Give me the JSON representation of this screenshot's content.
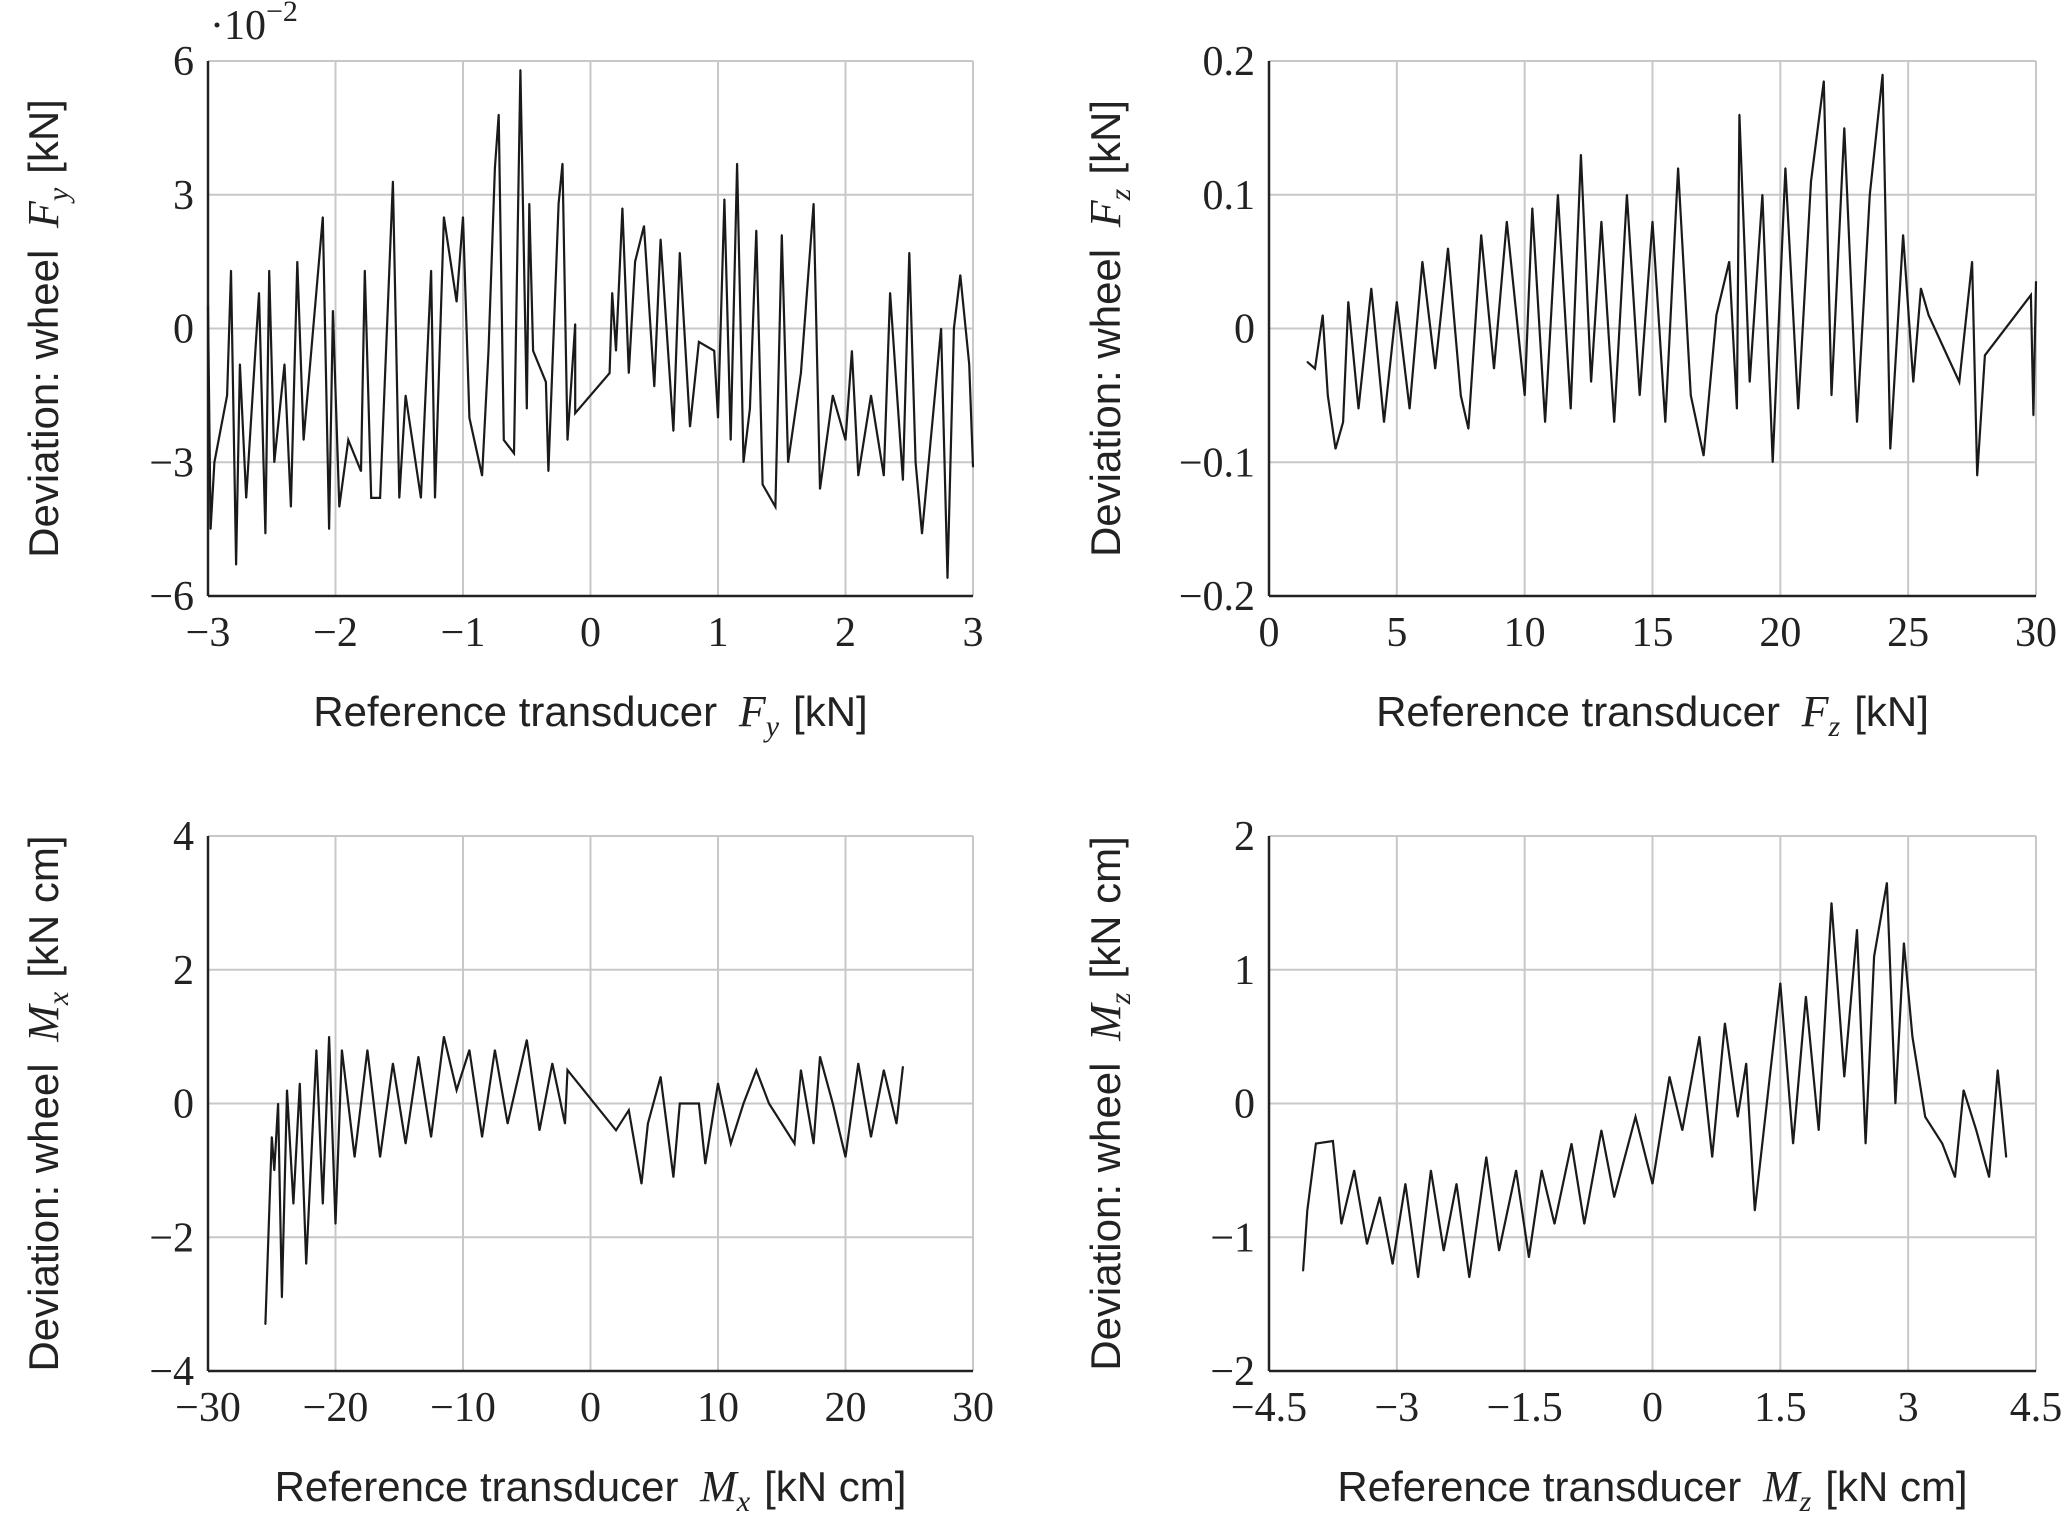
{
  "chart_data": [
    {
      "type": "line",
      "xlabel": {
        "prefix": "Reference transducer",
        "symbol": "F",
        "sub": "y",
        "unit": "[kN]"
      },
      "ylabel": {
        "prefix": "Deviation: wheel",
        "symbol": "F",
        "sub": "y",
        "unit": "[kN]"
      },
      "exponent_label": "·10",
      "exponent_power": "−2",
      "xlim": [
        -3,
        3
      ],
      "ylim": [
        -6,
        6
      ],
      "xticks": [
        -3,
        -2,
        -1,
        0,
        1,
        2,
        3
      ],
      "xtick_labels": [
        "−3",
        "−2",
        "−1",
        "0",
        "1",
        "2",
        "3"
      ],
      "yticks": [
        -6,
        -3,
        0,
        3,
        6
      ],
      "ytick_labels": [
        "−6",
        "−3",
        "0",
        "3",
        "6"
      ],
      "grid": true,
      "line_color": "#1a1a1a",
      "points": [
        [
          -3,
          0.5
        ],
        [
          -2.98,
          -4.5
        ],
        [
          -2.95,
          -3
        ],
        [
          -2.85,
          -1.5
        ],
        [
          -2.82,
          1.3
        ],
        [
          -2.78,
          -5.3
        ],
        [
          -2.75,
          -0.8
        ],
        [
          -2.7,
          -3.8
        ],
        [
          -2.6,
          0.8
        ],
        [
          -2.55,
          -4.6
        ],
        [
          -2.52,
          1.3
        ],
        [
          -2.48,
          -3
        ],
        [
          -2.4,
          -0.8
        ],
        [
          -2.35,
          -4
        ],
        [
          -2.3,
          1.5
        ],
        [
          -2.25,
          -2.5
        ],
        [
          -2.1,
          2.5
        ],
        [
          -2.05,
          -4.5
        ],
        [
          -2.02,
          0.4
        ],
        [
          -1.97,
          -4
        ],
        [
          -1.9,
          -2.5
        ],
        [
          -1.8,
          -3.2
        ],
        [
          -1.77,
          1.3
        ],
        [
          -1.72,
          -3.8
        ],
        [
          -1.65,
          -3.8
        ],
        [
          -1.55,
          3.3
        ],
        [
          -1.5,
          -3.8
        ],
        [
          -1.45,
          -1.5
        ],
        [
          -1.33,
          -3.8
        ],
        [
          -1.25,
          1.3
        ],
        [
          -1.22,
          -3.8
        ],
        [
          -1.15,
          2.5
        ],
        [
          -1.05,
          0.6
        ],
        [
          -1.0,
          2.5
        ],
        [
          -0.95,
          -2
        ],
        [
          -0.85,
          -3.3
        ],
        [
          -0.8,
          -0.5
        ],
        [
          -0.75,
          3.6
        ],
        [
          -0.72,
          4.8
        ],
        [
          -0.68,
          -2.5
        ],
        [
          -0.6,
          -2.8
        ],
        [
          -0.55,
          5.8
        ],
        [
          -0.5,
          -1.8
        ],
        [
          -0.48,
          2.8
        ],
        [
          -0.45,
          -0.5
        ],
        [
          -0.35,
          -1.2
        ],
        [
          -0.33,
          -3.2
        ],
        [
          -0.25,
          2.8
        ],
        [
          -0.22,
          3.7
        ],
        [
          -0.18,
          -2.5
        ],
        [
          -0.12,
          0.1
        ],
        [
          -0.12,
          -1.9
        ],
        [
          0.15,
          -1
        ],
        [
          0.17,
          0.8
        ],
        [
          0.2,
          -0.5
        ],
        [
          0.25,
          2.7
        ],
        [
          0.3,
          -1
        ],
        [
          0.35,
          1.5
        ],
        [
          0.42,
          2.3
        ],
        [
          0.5,
          -1.3
        ],
        [
          0.55,
          2
        ],
        [
          0.65,
          -2.3
        ],
        [
          0.7,
          1.7
        ],
        [
          0.78,
          -2.2
        ],
        [
          0.85,
          -0.3
        ],
        [
          0.97,
          -0.5
        ],
        [
          1.0,
          -2
        ],
        [
          1.05,
          2.9
        ],
        [
          1.1,
          -2.5
        ],
        [
          1.15,
          3.7
        ],
        [
          1.2,
          -3
        ],
        [
          1.25,
          -1.8
        ],
        [
          1.3,
          2.2
        ],
        [
          1.35,
          -3.5
        ],
        [
          1.45,
          -4
        ],
        [
          1.5,
          2.1
        ],
        [
          1.55,
          -3
        ],
        [
          1.65,
          -1
        ],
        [
          1.75,
          2.8
        ],
        [
          1.8,
          -3.6
        ],
        [
          1.9,
          -1.5
        ],
        [
          2.0,
          -2.5
        ],
        [
          2.05,
          -0.5
        ],
        [
          2.1,
          -3.3
        ],
        [
          2.2,
          -1.5
        ],
        [
          2.3,
          -3.3
        ],
        [
          2.35,
          0.8
        ],
        [
          2.45,
          -3.4
        ],
        [
          2.5,
          1.7
        ],
        [
          2.55,
          -3
        ],
        [
          2.6,
          -4.6
        ],
        [
          2.75,
          0
        ],
        [
          2.8,
          -5.6
        ],
        [
          2.85,
          0
        ],
        [
          2.9,
          1.2
        ],
        [
          2.97,
          -0.8
        ],
        [
          3.0,
          -3.1
        ]
      ]
    },
    {
      "type": "line",
      "xlabel": {
        "prefix": "Reference transducer",
        "symbol": "F",
        "sub": "z",
        "unit": "[kN]"
      },
      "ylabel": {
        "prefix": "Deviation: wheel",
        "symbol": "F",
        "sub": "z",
        "unit": "[kN]"
      },
      "xlim": [
        0,
        30
      ],
      "ylim": [
        -0.2,
        0.2
      ],
      "xticks": [
        0,
        5,
        10,
        15,
        20,
        25,
        30
      ],
      "xtick_labels": [
        "0",
        "5",
        "10",
        "15",
        "20",
        "25",
        "30"
      ],
      "yticks": [
        -0.2,
        -0.1,
        0,
        0.1,
        0.2
      ],
      "ytick_labels": [
        "−0.2",
        "−0.1",
        "0",
        "0.1",
        "0.2"
      ],
      "grid": true,
      "line_color": "#1a1a1a",
      "points": [
        [
          1.5,
          -0.025
        ],
        [
          1.8,
          -0.03
        ],
        [
          2.1,
          0.01
        ],
        [
          2.3,
          -0.05
        ],
        [
          2.6,
          -0.09
        ],
        [
          2.9,
          -0.07
        ],
        [
          3.1,
          0.02
        ],
        [
          3.5,
          -0.06
        ],
        [
          4,
          0.03
        ],
        [
          4.5,
          -0.07
        ],
        [
          5,
          0.02
        ],
        [
          5.5,
          -0.06
        ],
        [
          6,
          0.05
        ],
        [
          6.5,
          -0.03
        ],
        [
          7,
          0.06
        ],
        [
          7.5,
          -0.05
        ],
        [
          7.8,
          -0.075
        ],
        [
          8.3,
          0.07
        ],
        [
          8.8,
          -0.03
        ],
        [
          9.3,
          0.08
        ],
        [
          10,
          -0.05
        ],
        [
          10.3,
          0.09
        ],
        [
          10.8,
          -0.07
        ],
        [
          11.3,
          0.1
        ],
        [
          11.8,
          -0.06
        ],
        [
          12.2,
          0.13
        ],
        [
          12.6,
          -0.04
        ],
        [
          13,
          0.08
        ],
        [
          13.5,
          -0.07
        ],
        [
          14,
          0.1
        ],
        [
          14.5,
          -0.05
        ],
        [
          15,
          0.08
        ],
        [
          15.5,
          -0.07
        ],
        [
          16,
          0.12
        ],
        [
          16.5,
          -0.05
        ],
        [
          17,
          -0.095
        ],
        [
          17.5,
          0.01
        ],
        [
          18,
          0.05
        ],
        [
          18.3,
          -0.06
        ],
        [
          18.4,
          0.16
        ],
        [
          18.8,
          -0.04
        ],
        [
          19.3,
          0.1
        ],
        [
          19.7,
          -0.1
        ],
        [
          20.2,
          0.12
        ],
        [
          20.7,
          -0.06
        ],
        [
          21.2,
          0.11
        ],
        [
          21.7,
          0.185
        ],
        [
          22,
          -0.05
        ],
        [
          22.5,
          0.15
        ],
        [
          23,
          -0.07
        ],
        [
          23.5,
          0.1
        ],
        [
          24,
          0.19
        ],
        [
          24.3,
          -0.09
        ],
        [
          24.8,
          0.07
        ],
        [
          25.2,
          -0.04
        ],
        [
          25.5,
          0.03
        ],
        [
          25.8,
          0.01
        ],
        [
          27,
          -0.04
        ],
        [
          27.5,
          0.05
        ],
        [
          27.7,
          -0.11
        ],
        [
          28,
          -0.02
        ],
        [
          29.8,
          0.025
        ],
        [
          29.9,
          -0.065
        ],
        [
          30,
          0.035
        ]
      ]
    },
    {
      "type": "line",
      "xlabel": {
        "prefix": "Reference transducer",
        "symbol": "M",
        "sub": "x",
        "unit": "[kN cm]"
      },
      "ylabel": {
        "prefix": "Deviation: wheel",
        "symbol": "M",
        "sub": "x",
        "unit": "[kN cm]"
      },
      "xlim": [
        -30,
        30
      ],
      "ylim": [
        -4,
        4
      ],
      "xticks": [
        -30,
        -20,
        -10,
        0,
        10,
        20,
        30
      ],
      "xtick_labels": [
        "−30",
        "−20",
        "−10",
        "0",
        "10",
        "20",
        "30"
      ],
      "yticks": [
        -4,
        -2,
        0,
        2,
        4
      ],
      "ytick_labels": [
        "−4",
        "−2",
        "0",
        "2",
        "4"
      ],
      "grid": true,
      "line_color": "#1a1a1a",
      "points": [
        [
          -25.5,
          -3.3
        ],
        [
          -25,
          -0.5
        ],
        [
          -24.8,
          -1
        ],
        [
          -24.5,
          0
        ],
        [
          -24.2,
          -2.9
        ],
        [
          -23.8,
          0.2
        ],
        [
          -23.3,
          -1.5
        ],
        [
          -22.8,
          0.3
        ],
        [
          -22.3,
          -2.4
        ],
        [
          -21.5,
          0.8
        ],
        [
          -21,
          -1.5
        ],
        [
          -20.5,
          1
        ],
        [
          -20,
          -1.8
        ],
        [
          -19.5,
          0.8
        ],
        [
          -18.5,
          -0.8
        ],
        [
          -17.5,
          0.8
        ],
        [
          -16.5,
          -0.8
        ],
        [
          -15.5,
          0.6
        ],
        [
          -14.5,
          -0.6
        ],
        [
          -13.5,
          0.7
        ],
        [
          -12.5,
          -0.5
        ],
        [
          -11.5,
          1
        ],
        [
          -10.5,
          0.2
        ],
        [
          -9.5,
          0.8
        ],
        [
          -8.5,
          -0.5
        ],
        [
          -7.5,
          0.8
        ],
        [
          -6.5,
          -0.3
        ],
        [
          -5,
          0.95
        ],
        [
          -4,
          -0.4
        ],
        [
          -3,
          0.6
        ],
        [
          -2,
          -0.3
        ],
        [
          -1.8,
          0.5
        ],
        [
          2,
          -0.4
        ],
        [
          3,
          -0.1
        ],
        [
          4,
          -1.2
        ],
        [
          4.5,
          -0.3
        ],
        [
          5.5,
          0.4
        ],
        [
          6.5,
          -1.1
        ],
        [
          7,
          0
        ],
        [
          8.5,
          0
        ],
        [
          9,
          -0.9
        ],
        [
          10,
          0.3
        ],
        [
          11,
          -0.6
        ],
        [
          12,
          0
        ],
        [
          13,
          0.5
        ],
        [
          14,
          0
        ],
        [
          16,
          -0.6
        ],
        [
          16.5,
          0.5
        ],
        [
          17.5,
          -0.6
        ],
        [
          18,
          0.7
        ],
        [
          19,
          0
        ],
        [
          20,
          -0.8
        ],
        [
          21,
          0.6
        ],
        [
          22,
          -0.5
        ],
        [
          23,
          0.5
        ],
        [
          24,
          -0.3
        ],
        [
          24.5,
          0.55
        ]
      ]
    },
    {
      "type": "line",
      "xlabel": {
        "prefix": "Reference transducer",
        "symbol": "M",
        "sub": "z",
        "unit": "[kN cm]"
      },
      "ylabel": {
        "prefix": "Deviation: wheel",
        "symbol": "M",
        "sub": "z",
        "unit": "[kN cm]"
      },
      "xlim": [
        -4.5,
        4.5
      ],
      "ylim": [
        -2,
        2
      ],
      "xticks": [
        -4.5,
        -3,
        -1.5,
        0,
        1.5,
        3,
        4.5
      ],
      "xtick_labels": [
        "−4.5",
        "−3",
        "−1.5",
        "0",
        "1.5",
        "3",
        "4.5"
      ],
      "yticks": [
        -2,
        -1,
        0,
        1,
        2
      ],
      "ytick_labels": [
        "−2",
        "−1",
        "0",
        "1",
        "2"
      ],
      "grid": true,
      "line_color": "#1a1a1a",
      "points": [
        [
          -4.1,
          -1.25
        ],
        [
          -4.05,
          -0.8
        ],
        [
          -3.95,
          -0.3
        ],
        [
          -3.75,
          -0.28
        ],
        [
          -3.65,
          -0.9
        ],
        [
          -3.5,
          -0.5
        ],
        [
          -3.35,
          -1.05
        ],
        [
          -3.2,
          -0.7
        ],
        [
          -3.05,
          -1.2
        ],
        [
          -2.9,
          -0.6
        ],
        [
          -2.75,
          -1.3
        ],
        [
          -2.6,
          -0.5
        ],
        [
          -2.45,
          -1.1
        ],
        [
          -2.3,
          -0.6
        ],
        [
          -2.15,
          -1.3
        ],
        [
          -1.95,
          -0.4
        ],
        [
          -1.8,
          -1.1
        ],
        [
          -1.6,
          -0.5
        ],
        [
          -1.45,
          -1.15
        ],
        [
          -1.3,
          -0.5
        ],
        [
          -1.15,
          -0.9
        ],
        [
          -0.95,
          -0.3
        ],
        [
          -0.8,
          -0.9
        ],
        [
          -0.6,
          -0.2
        ],
        [
          -0.45,
          -0.7
        ],
        [
          -0.2,
          -0.1
        ],
        [
          0,
          -0.6
        ],
        [
          0.2,
          0.2
        ],
        [
          0.35,
          -0.2
        ],
        [
          0.55,
          0.5
        ],
        [
          0.7,
          -0.4
        ],
        [
          0.85,
          0.6
        ],
        [
          1,
          -0.1
        ],
        [
          1.1,
          0.3
        ],
        [
          1.2,
          -0.8
        ],
        [
          1.5,
          0.9
        ],
        [
          1.65,
          -0.3
        ],
        [
          1.8,
          0.8
        ],
        [
          1.95,
          -0.2
        ],
        [
          2.1,
          1.5
        ],
        [
          2.25,
          0.2
        ],
        [
          2.4,
          1.3
        ],
        [
          2.5,
          -0.3
        ],
        [
          2.6,
          1.1
        ],
        [
          2.75,
          1.65
        ],
        [
          2.85,
          0
        ],
        [
          2.95,
          1.2
        ],
        [
          3.05,
          0.5
        ],
        [
          3.2,
          -0.1
        ],
        [
          3.4,
          -0.3
        ],
        [
          3.55,
          -0.55
        ],
        [
          3.65,
          0.1
        ],
        [
          3.8,
          -0.2
        ],
        [
          3.95,
          -0.55
        ],
        [
          4.05,
          0.25
        ],
        [
          4.15,
          -0.4
        ]
      ]
    }
  ]
}
